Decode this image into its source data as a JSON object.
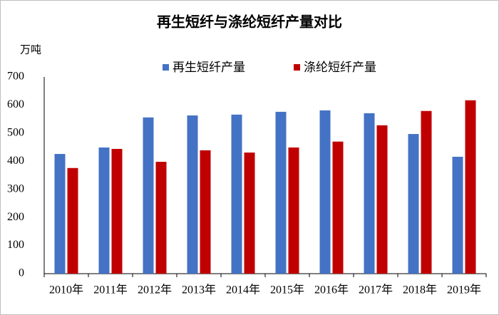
{
  "chart_data": {
    "type": "bar",
    "title": "再生短纤与涤纶短纤产量对比",
    "y_label": "万吨",
    "categories": [
      "2010年",
      "2011年",
      "2012年",
      "2013年",
      "2014年",
      "2015年",
      "2016年",
      "2017年",
      "2018年",
      "2019年"
    ],
    "series": [
      {
        "name": "再生短纤产量",
        "color": "#4472c4",
        "values": [
          426,
          449,
          556,
          563,
          566,
          576,
          581,
          571,
          497,
          416
        ]
      },
      {
        "name": "涤纶短纤产量",
        "color": "#c00000",
        "values": [
          376,
          444,
          398,
          439,
          431,
          449,
          470,
          528,
          579,
          617
        ]
      }
    ],
    "ylim": [
      0,
      700
    ],
    "yticks": [
      0,
      100,
      200,
      300,
      400,
      500,
      600,
      700
    ],
    "grid": false,
    "legend": "top"
  }
}
